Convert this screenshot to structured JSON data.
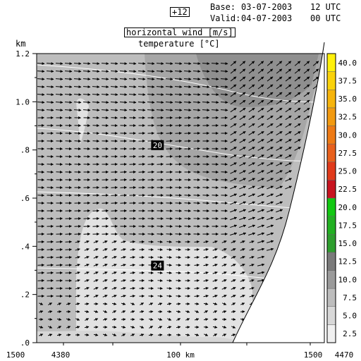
{
  "header": {
    "forecast_hour": "+12",
    "base_label": "Base:",
    "base_date": "03-07-2003",
    "base_time": "12 UTC",
    "valid_label": "Valid:",
    "valid_date": "04-07-2003",
    "valid_time": "00 UTC"
  },
  "chart_data": {
    "type": "cross-section",
    "title": "horizontal wind [m/s]",
    "subtitle": "temperature [°C]",
    "yunit": "km",
    "ylim": [
      0,
      1.2
    ],
    "yticks": [
      ".0",
      ".2",
      ".4",
      ".6",
      ".8",
      "1.0",
      "1.2"
    ],
    "xtick_labels": [
      "1500",
      "4380",
      "100 km",
      "1500",
      "4470"
    ],
    "isotherm_labels": [
      {
        "value": "20",
        "x_km": 0.42,
        "z_km": 0.82
      },
      {
        "value": "24",
        "x_km": 0.42,
        "z_km": 0.32
      }
    ],
    "colorbar": {
      "levels": [
        "2.5",
        "5.0",
        "7.5",
        "10.0",
        "12.5",
        "15.0",
        "17.5",
        "20.0",
        "22.5",
        "25.0",
        "27.5",
        "30.0",
        "32.5",
        "35.0",
        "37.5",
        "40.0"
      ],
      "colors": [
        "#f0f0f0",
        "#d8d8d8",
        "#bdbdbd",
        "#9a9a9a",
        "#7a7a7a",
        "#2e9e2e",
        "#22b022",
        "#12c812",
        "#c81420",
        "#e03a1a",
        "#e8601c",
        "#ee7a14",
        "#f29a10",
        "#f6b40c",
        "#fad20a",
        "#fff00a"
      ]
    },
    "wind_speed_bands": [
      {
        "region": "upper-right",
        "range": "7.5-10.0"
      },
      {
        "region": "upper-middle",
        "range": "5.0-7.5"
      },
      {
        "region": "left-middle",
        "range": "2.5-5.0"
      },
      {
        "region": "lower-middle",
        "range": "0-2.5"
      }
    ]
  }
}
